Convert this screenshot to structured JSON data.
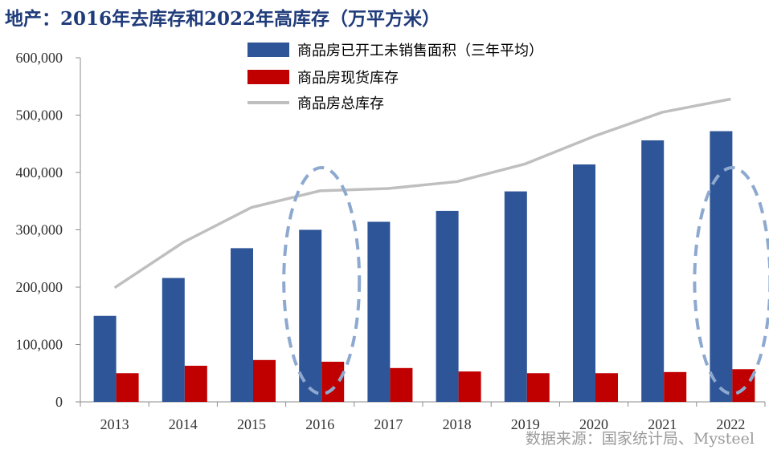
{
  "chart_data": {
    "type": "bar",
    "title": "地产：2016年去库存和2022年高库存（万平方米）",
    "xlabel": "",
    "ylabel": "",
    "categories": [
      "2013",
      "2014",
      "2015",
      "2016",
      "2017",
      "2018",
      "2019",
      "2020",
      "2021",
      "2022"
    ],
    "ylim": [
      0,
      600000
    ],
    "yticks": [
      0,
      100000,
      200000,
      300000,
      400000,
      500000,
      600000
    ],
    "ytick_labels": [
      "0",
      "100,000",
      "200,000",
      "300,000",
      "400,000",
      "500,000",
      "600,000"
    ],
    "grid": false,
    "legend_position": "top",
    "series": [
      {
        "name": "商品房已开工未销售面积（三年平均）",
        "type": "bar",
        "color": "#2E5597",
        "values": [
          150000,
          216000,
          268000,
          300000,
          314000,
          333000,
          367000,
          414000,
          456000,
          472000
        ]
      },
      {
        "name": "商品房现货库存",
        "type": "bar",
        "color": "#C00000",
        "values": [
          50000,
          63000,
          73000,
          70000,
          59000,
          53000,
          50000,
          50000,
          52000,
          57000
        ]
      },
      {
        "name": "商品房总库存",
        "type": "line",
        "color": "#BFBFBF",
        "values": [
          199000,
          278000,
          339000,
          368000,
          372000,
          384000,
          415000,
          463000,
          505000,
          528000
        ]
      }
    ],
    "highlights": [
      {
        "category": "2016",
        "shape": "dashed-ellipse",
        "color": "#8EA9CF"
      },
      {
        "category": "2022",
        "shape": "dashed-ellipse",
        "color": "#8EA9CF"
      }
    ],
    "source": "数据来源：国家统计局、Mysteel"
  }
}
